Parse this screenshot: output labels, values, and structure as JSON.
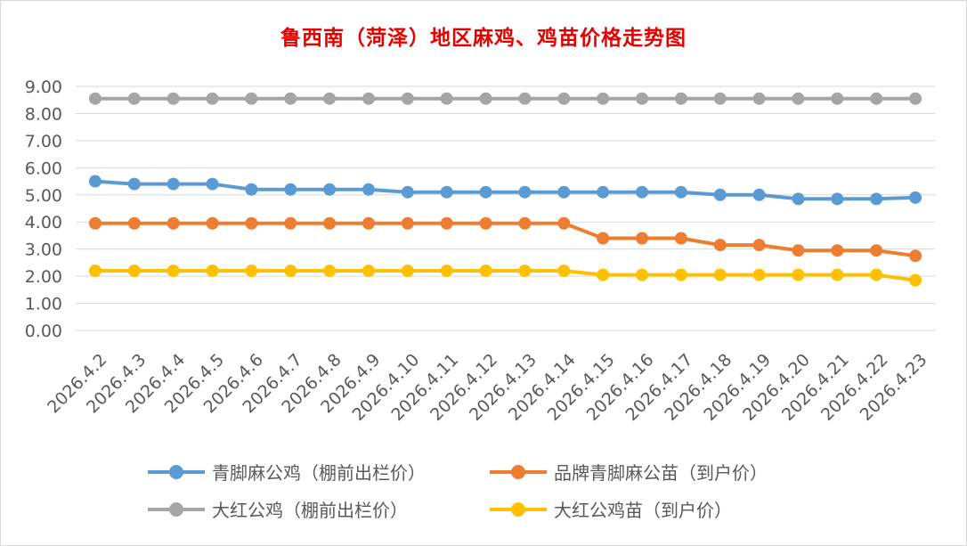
{
  "chart_data": {
    "type": "line",
    "title": "鲁西南（菏泽）地区麻鸡、鸡苗价格走势图",
    "xlabel": "",
    "ylabel": "",
    "ylim": [
      0,
      9
    ],
    "ytick_step": 1,
    "ytick_decimals": 2,
    "grid": true,
    "legend_position": "bottom",
    "categories": [
      "2026.4.2",
      "2026.4.3",
      "2026.4.4",
      "2026.4.5",
      "2026.4.6",
      "2026.4.7",
      "2026.4.8",
      "2026.4.9",
      "2026.4.10",
      "2026.4.11",
      "2026.4.12",
      "2026.4.13",
      "2026.4.14",
      "2026.4.15",
      "2026.4.16",
      "2026.4.17",
      "2026.4.18",
      "2026.4.19",
      "2026.4.20",
      "2026.4.21",
      "2026.4.22",
      "2026.4.23"
    ],
    "series": [
      {
        "name": "青脚麻公鸡（棚前出栏价）",
        "color": "#5b9bd5",
        "values": [
          5.5,
          5.4,
          5.4,
          5.4,
          5.2,
          5.2,
          5.2,
          5.2,
          5.1,
          5.1,
          5.1,
          5.1,
          5.1,
          5.1,
          5.1,
          5.1,
          5.0,
          5.0,
          4.85,
          4.85,
          4.85,
          4.9
        ]
      },
      {
        "name": "品牌青脚麻公苗（到户价）",
        "color": "#ed7d31",
        "values": [
          3.95,
          3.95,
          3.95,
          3.95,
          3.95,
          3.95,
          3.95,
          3.95,
          3.95,
          3.95,
          3.95,
          3.95,
          3.95,
          3.4,
          3.4,
          3.4,
          3.15,
          3.15,
          2.95,
          2.95,
          2.95,
          2.75
        ]
      },
      {
        "name": "大红公鸡（棚前出栏价）",
        "color": "#a5a5a5",
        "values": [
          8.55,
          8.55,
          8.55,
          8.55,
          8.55,
          8.55,
          8.55,
          8.55,
          8.55,
          8.55,
          8.55,
          8.55,
          8.55,
          8.55,
          8.55,
          8.55,
          8.55,
          8.55,
          8.55,
          8.55,
          8.55,
          8.55
        ]
      },
      {
        "name": "大红公鸡苗（到户价）",
        "color": "#ffc000",
        "values": [
          2.2,
          2.2,
          2.2,
          2.2,
          2.2,
          2.2,
          2.2,
          2.2,
          2.2,
          2.2,
          2.2,
          2.2,
          2.2,
          2.05,
          2.05,
          2.05,
          2.05,
          2.05,
          2.05,
          2.05,
          2.05,
          1.85
        ]
      }
    ]
  }
}
